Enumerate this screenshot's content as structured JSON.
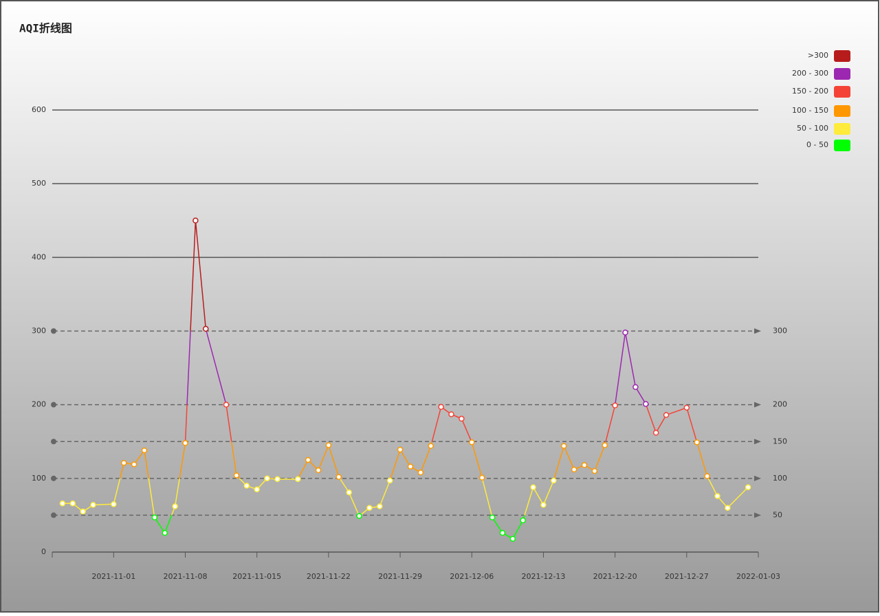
{
  "chart_data": {
    "type": "line",
    "title": "AQI折线图",
    "x": [
      "2021-10-27",
      "2021-10-28",
      "2021-10-29",
      "2021-10-30",
      "2021-11-01",
      "2021-11-02",
      "2021-11-03",
      "2021-11-04",
      "2021-11-05",
      "2021-11-06",
      "2021-11-07",
      "2021-11-08",
      "2021-11-09",
      "2021-11-10",
      "2021-11-12",
      "2021-11-13",
      "2021-11-14",
      "2021-11-15",
      "2021-11-16",
      "2021-11-17",
      "2021-11-19",
      "2021-11-20",
      "2021-11-21",
      "2021-11-22",
      "2021-11-23",
      "2021-11-24",
      "2021-11-25",
      "2021-11-26",
      "2021-11-27",
      "2021-11-28",
      "2021-11-29",
      "2021-11-30",
      "2021-12-01",
      "2021-12-02",
      "2021-12-03",
      "2021-12-04",
      "2021-12-05",
      "2021-12-06",
      "2021-12-07",
      "2021-12-08",
      "2021-12-09",
      "2021-12-10",
      "2021-12-11",
      "2021-12-12",
      "2021-12-13",
      "2021-12-14",
      "2021-12-15",
      "2021-12-16",
      "2021-12-17",
      "2021-12-18",
      "2021-12-19",
      "2021-12-20",
      "2021-12-21",
      "2021-12-22",
      "2021-12-23",
      "2021-12-24",
      "2021-12-25",
      "2021-12-27",
      "2021-12-28",
      "2021-12-29",
      "2021-12-30",
      "2021-12-31",
      "2022-01-02"
    ],
    "values": [
      66,
      66,
      55,
      64,
      65,
      121,
      119,
      138,
      47,
      26,
      62,
      148,
      450,
      303,
      200,
      104,
      90,
      85,
      100,
      99,
      99,
      125,
      111,
      145,
      102,
      81,
      49,
      60,
      62,
      97,
      139,
      116,
      108,
      144,
      197,
      187,
      181,
      149,
      101,
      47,
      26,
      18,
      43,
      88,
      64,
      97,
      144,
      112,
      118,
      110,
      145,
      199,
      298,
      224,
      201,
      162,
      186,
      196,
      149,
      103,
      76,
      60,
      88
    ],
    "xlim": [
      "2021-10-26",
      "2022-01-03"
    ],
    "xticks": [
      "2021-11-01",
      "2021-11-08",
      {
        "value": "2021-11-15",
        "label": "2021-11-015"
      },
      "2021-11-22",
      "2021-11-29",
      "2021-12-06",
      "2021-12-13",
      "2021-12-20",
      "2021-12-27",
      "2022-01-03"
    ],
    "ylim": [
      0,
      600
    ],
    "yticks": [
      0,
      100,
      200,
      300,
      400,
      500,
      600
    ],
    "mark_lines": [
      300,
      200,
      150,
      100,
      50
    ],
    "pieces": [
      {
        "label": ">300",
        "min": 300,
        "color": "#b71c1c"
      },
      {
        "label": "200 - 300",
        "min": 200,
        "max": 300,
        "color": "#9c27b0"
      },
      {
        "label": "150 - 200",
        "min": 150,
        "max": 200,
        "color": "#f44336"
      },
      {
        "label": "100 - 150",
        "min": 100,
        "max": 150,
        "color": "#ff9800"
      },
      {
        "label": "50 - 100",
        "min": 50,
        "max": 100,
        "color": "#ffeb3b"
      },
      {
        "label": "0 - 50",
        "min": 0,
        "max": 50,
        "color": "#00ff00"
      }
    ]
  }
}
